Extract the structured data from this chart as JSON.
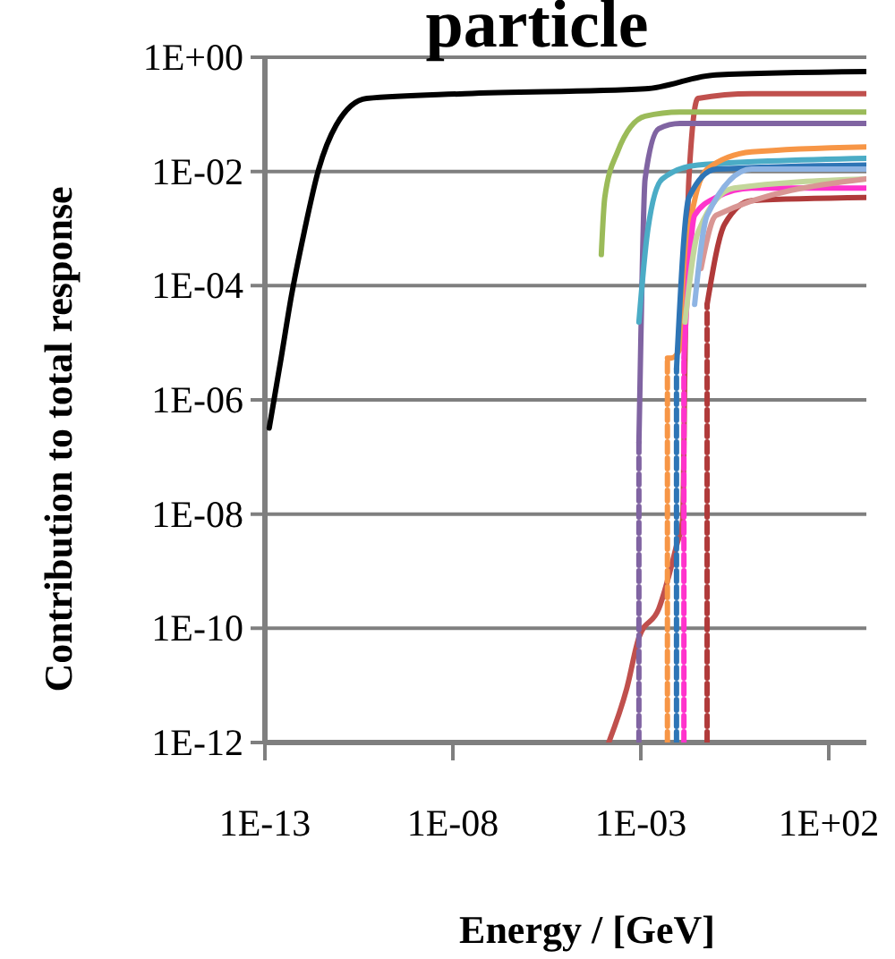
{
  "chart_data": {
    "type": "line",
    "title": "particle",
    "xlabel": "Energy / [GeV]",
    "ylabel": "Contribution to total response",
    "log": "xy",
    "grid": "y",
    "line_style": "solid",
    "xlim": [
      1e-13,
      1000
    ],
    "ylim": [
      1e-12,
      1
    ],
    "xticks": [
      {
        "value": 1e-13,
        "label": "1E-13"
      },
      {
        "value": 1e-08,
        "label": "1E-08"
      },
      {
        "value": 0.001,
        "label": "1E-03"
      },
      {
        "value": 100,
        "label": "1E+02"
      }
    ],
    "yticks": [
      {
        "value": 1,
        "label": "1E+00"
      },
      {
        "value": 0.01,
        "label": "1E-02"
      },
      {
        "value": 0.0001,
        "label": "1E-04"
      },
      {
        "value": 1e-06,
        "label": "1E-06"
      },
      {
        "value": 1e-08,
        "label": "1E-08"
      },
      {
        "value": 1e-10,
        "label": "1E-10"
      },
      {
        "value": 1e-12,
        "label": "1E-12"
      }
    ],
    "series": [
      {
        "color": "#000000",
        "x": [
          1.3e-13,
          2.7e-13,
          5.1e-13,
          1.1e-12,
          2.7e-12,
          7.9e-12,
          5.1e-11,
          2.1e-08,
          0.0013,
          0.1,
          1000
        ],
        "values": [
          3.2e-07,
          5.4e-06,
          6.8e-05,
          0.00085,
          0.011,
          0.065,
          0.19,
          0.23,
          0.28,
          0.49,
          0.56
        ]
      },
      {
        "color": "#c0504d",
        "x": [
          0.00014,
          0.00042,
          0.00089,
          0.003,
          0.0089,
          0.013,
          0.015,
          0.019,
          0.033,
          0.89,
          1000
        ],
        "values": [
          1e-12,
          8.7e-12,
          6.9e-11,
          2.2e-10,
          2.8e-09,
          8.1e-09,
          5.4e-06,
          0.0074,
          0.19,
          0.23,
          0.23
        ]
      },
      {
        "color": "#9bbb59",
        "x": [
          8.9e-05,
          0.00011,
          0.00024,
          0.0013,
          0.011,
          1000
        ],
        "values": [
          0.00035,
          0.0035,
          0.022,
          0.093,
          0.11,
          0.11
        ]
      },
      {
        "color": "#8064a2",
        "line_style": "dashed",
        "x": [
          0.00089,
          0.00089
        ],
        "values": [
          1e-12,
          1.8e-07
        ]
      },
      {
        "color": "#8064a2",
        "x": [
          0.00089,
          0.001,
          0.0013,
          0.003,
          0.011,
          1000
        ],
        "values": [
          1.8e-07,
          1.1e-05,
          0.0074,
          0.056,
          0.069,
          0.069
        ]
      },
      {
        "color": "#4bacc6",
        "x": [
          0.00089,
          0.0015,
          0.0037,
          0.033,
          1000
        ],
        "values": [
          2.3e-05,
          0.00085,
          0.0074,
          0.013,
          0.017
        ]
      },
      {
        "color": "#f79646",
        "line_style": "dashed",
        "x": [
          0.0051,
          0.0051
        ],
        "values": [
          1e-12,
          5.4e-06
        ]
      },
      {
        "color": "#f79646",
        "x": [
          0.0051,
          0.0065,
          0.011,
          0.019,
          0.058,
          0.89,
          1000
        ],
        "values": [
          5.4e-06,
          5.4e-06,
          7.8e-06,
          0.00085,
          0.011,
          0.022,
          0.027
        ]
      },
      {
        "color": "#2e75b6",
        "line_style": "dashed",
        "x": [
          0.0089,
          0.0089
        ],
        "values": [
          1e-12,
          3.5e-06
        ]
      },
      {
        "color": "#2e75b6",
        "x": [
          0.0089,
          0.019,
          0.1,
          1000
        ],
        "values": [
          3.5e-06,
          0.0035,
          0.011,
          0.013
        ]
      },
      {
        "color": "#ff33cc",
        "line_style": "dashed",
        "x": [
          0.014,
          0.014
        ],
        "values": [
          1e-12,
          5.4e-06
        ]
      },
      {
        "color": "#ff33cc",
        "x": [
          0.014,
          0.027,
          0.1,
          0.89,
          1000
        ],
        "values": [
          5.4e-06,
          0.0017,
          0.0035,
          0.0051,
          0.0051
        ]
      },
      {
        "color": "#c3d69b",
        "x": [
          0.015,
          0.033,
          0.3,
          1000
        ],
        "values": [
          2.3e-05,
          0.00085,
          0.0051,
          0.0074
        ]
      },
      {
        "color": "#b03a3a",
        "line_style": "dashed",
        "x": [
          0.058,
          0.058
        ],
        "values": [
          1e-12,
          4.7e-05
        ]
      },
      {
        "color": "#b03a3a",
        "x": [
          0.058,
          0.17,
          0.89,
          1000
        ],
        "values": [
          4.7e-05,
          0.0012,
          0.0031,
          0.0035
        ]
      },
      {
        "color": "#d99694",
        "x": [
          0.04,
          0.1,
          1000
        ],
        "values": [
          0.0002,
          0.0017,
          0.0074
        ]
      },
      {
        "color": "#8eb4e3",
        "x": [
          0.027,
          0.058,
          0.89,
          1000
        ],
        "values": [
          4.7e-05,
          0.0017,
          0.011,
          0.011
        ]
      }
    ]
  }
}
